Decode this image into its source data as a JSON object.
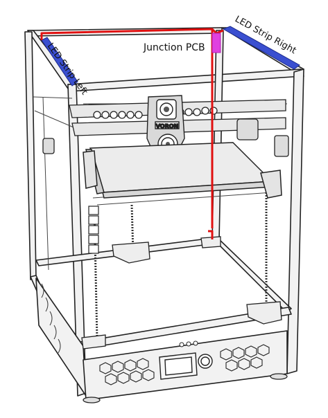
{
  "labels": {
    "led_left": "LED Strip Left",
    "led_right": "LED Strip Right",
    "junction": "Junction PCB"
  },
  "colors": {
    "frame_stroke": "#222222",
    "frame_fill": "#f2f2f2",
    "led_strip": "#3a4fd0",
    "wire": "#e01010",
    "junction_pcb": "#e040e0",
    "text": "#111111"
  },
  "display_panel": {
    "icon": "lcd-screen"
  },
  "knob": {
    "icon": "rotary-knob"
  },
  "brand_mark": {
    "text": "VORON"
  }
}
